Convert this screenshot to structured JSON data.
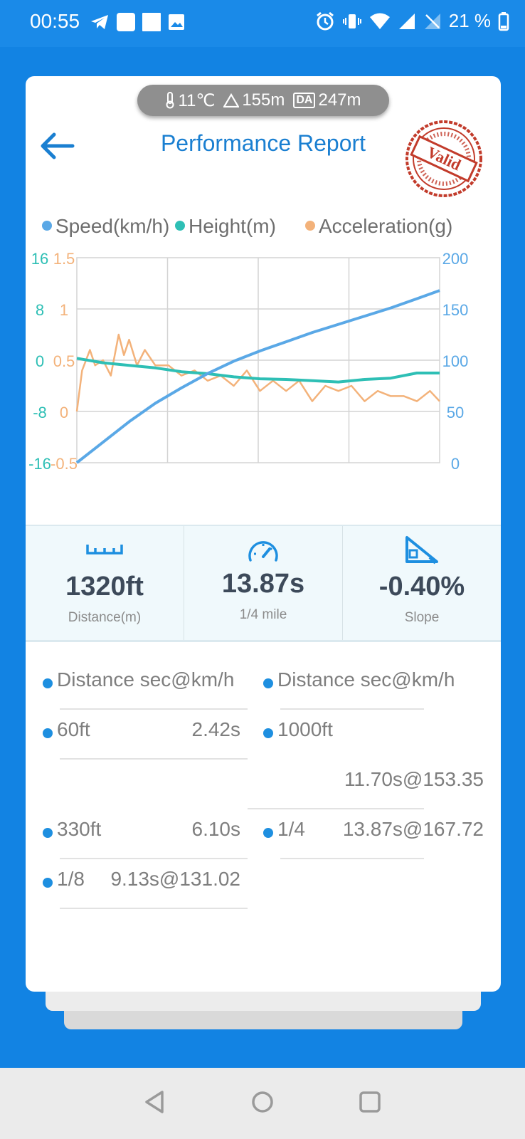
{
  "status_bar": {
    "time": "00:55",
    "battery": "21 %",
    "left_icons": [
      "telegram-icon",
      "notification-square-icon",
      "notification-square-icon",
      "image-icon"
    ],
    "right_icons": [
      "alarm-icon",
      "vibrate-icon",
      "wifi-icon",
      "signal-icon",
      "no-sim-icon",
      "battery-icon"
    ]
  },
  "env": {
    "temperature": "11℃",
    "altitude": "155m",
    "da_badge": "DA",
    "density_altitude": "247m"
  },
  "header": {
    "title": "Performance Report",
    "stamp_text": "Valid"
  },
  "chart_data": {
    "type": "line",
    "legend": [
      "Speed(km/h)",
      "Height(m)",
      "Acceleration(g)"
    ],
    "colors": {
      "speed": "#5aa8e6",
      "height": "#2ebfb5",
      "acceleration": "#f3b27a"
    },
    "height_axis": {
      "ticks": [
        "16",
        "8",
        "0",
        "-8",
        "-16"
      ],
      "range": [
        -16,
        16
      ]
    },
    "acc_axis": {
      "ticks": [
        "1.5",
        "1",
        "0.5",
        "0",
        "-0.5"
      ],
      "range": [
        -0.5,
        1.5
      ]
    },
    "speed_axis": {
      "ticks": [
        "200",
        "150",
        "100",
        "50",
        "0"
      ],
      "range": [
        0,
        200
      ]
    },
    "x_range": [
      0,
      13.87
    ],
    "series": [
      {
        "name": "Speed(km/h)",
        "axis": "speed",
        "x": [
          0,
          1,
          2,
          3,
          4,
          5,
          6,
          7,
          8,
          9,
          10,
          11,
          12,
          13,
          13.87
        ],
        "values": [
          0,
          20,
          40,
          58,
          73,
          87,
          99,
          109,
          118,
          127,
          135,
          143,
          151,
          160,
          168
        ]
      },
      {
        "name": "Height(m)",
        "axis": "height",
        "x": [
          0,
          1,
          2,
          3,
          4,
          5,
          6,
          7,
          8,
          9,
          10,
          11,
          12,
          13,
          13.87
        ],
        "values": [
          0.3,
          -0.4,
          -0.8,
          -1.2,
          -1.8,
          -2.1,
          -2.6,
          -2.9,
          -3.0,
          -3.2,
          -3.4,
          -3.0,
          -2.8,
          -2.0,
          -2.0
        ]
      },
      {
        "name": "Acceleration(g)",
        "axis": "acc",
        "x": [
          0,
          0.2,
          0.5,
          0.7,
          1.0,
          1.3,
          1.6,
          1.8,
          2.0,
          2.3,
          2.6,
          3.0,
          3.5,
          4.0,
          4.5,
          5.0,
          5.5,
          6.0,
          6.5,
          7.0,
          7.5,
          8.0,
          8.5,
          9.0,
          9.5,
          10.0,
          10.5,
          11.0,
          11.5,
          12.0,
          12.5,
          13.0,
          13.5,
          13.87
        ],
        "values": [
          0.0,
          0.4,
          0.6,
          0.45,
          0.5,
          0.35,
          0.75,
          0.55,
          0.7,
          0.45,
          0.6,
          0.45,
          0.45,
          0.35,
          0.4,
          0.3,
          0.35,
          0.25,
          0.4,
          0.2,
          0.3,
          0.2,
          0.3,
          0.1,
          0.25,
          0.2,
          0.25,
          0.1,
          0.2,
          0.15,
          0.15,
          0.1,
          0.2,
          0.1
        ]
      }
    ]
  },
  "stats": [
    {
      "value": "1320ft",
      "label": "Distance(m)",
      "icon": "ruler-icon"
    },
    {
      "value": "13.87s",
      "label": "1/4 mile",
      "icon": "speedometer-icon"
    },
    {
      "value": "-0.40%",
      "label": "Slope",
      "icon": "slope-icon"
    }
  ],
  "splits": {
    "header_left": "Distance sec@km/h",
    "header_right": "Distance sec@km/h",
    "rows": [
      {
        "dist": "60ft",
        "value": "2.42s"
      },
      {
        "dist": "1000ft",
        "value": "11.70s@153.35"
      },
      {
        "dist": "330ft",
        "value": "6.10s"
      },
      {
        "dist": "1/4",
        "value": "13.87s@167.72"
      },
      {
        "dist": "1/8",
        "value": "9.13s@131.02"
      }
    ]
  }
}
